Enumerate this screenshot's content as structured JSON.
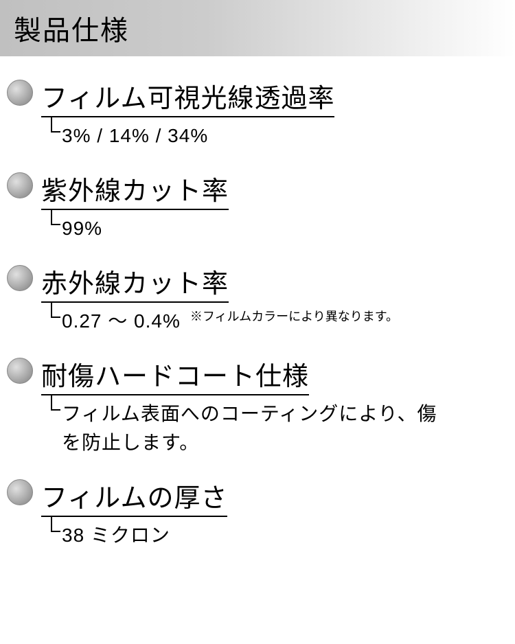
{
  "header": {
    "title": "製品仕様"
  },
  "specs": [
    {
      "title": "フィルム可視光線透過率",
      "value": "3%  /  14%  /  34%",
      "note": ""
    },
    {
      "title": "紫外線カット率",
      "value": "99%",
      "note": ""
    },
    {
      "title": "赤外線カット率",
      "value": "0.27 〜 0.4%",
      "note": "※フィルムカラーにより異なります。"
    },
    {
      "title": "耐傷ハードコート仕様",
      "value": "フィルム表面へのコーティングにより、傷を防止します。",
      "note": ""
    },
    {
      "title": "フィルムの厚さ",
      "value": "38 ミクロン",
      "note": ""
    }
  ],
  "colors": {
    "headerGradientStart": "#c0c0c0",
    "headerGradientEnd": "#ffffff",
    "text": "#000000",
    "background": "#ffffff",
    "bulletLight": "#e0e0e0",
    "bulletDark": "#808080",
    "underline": "#000000"
  }
}
